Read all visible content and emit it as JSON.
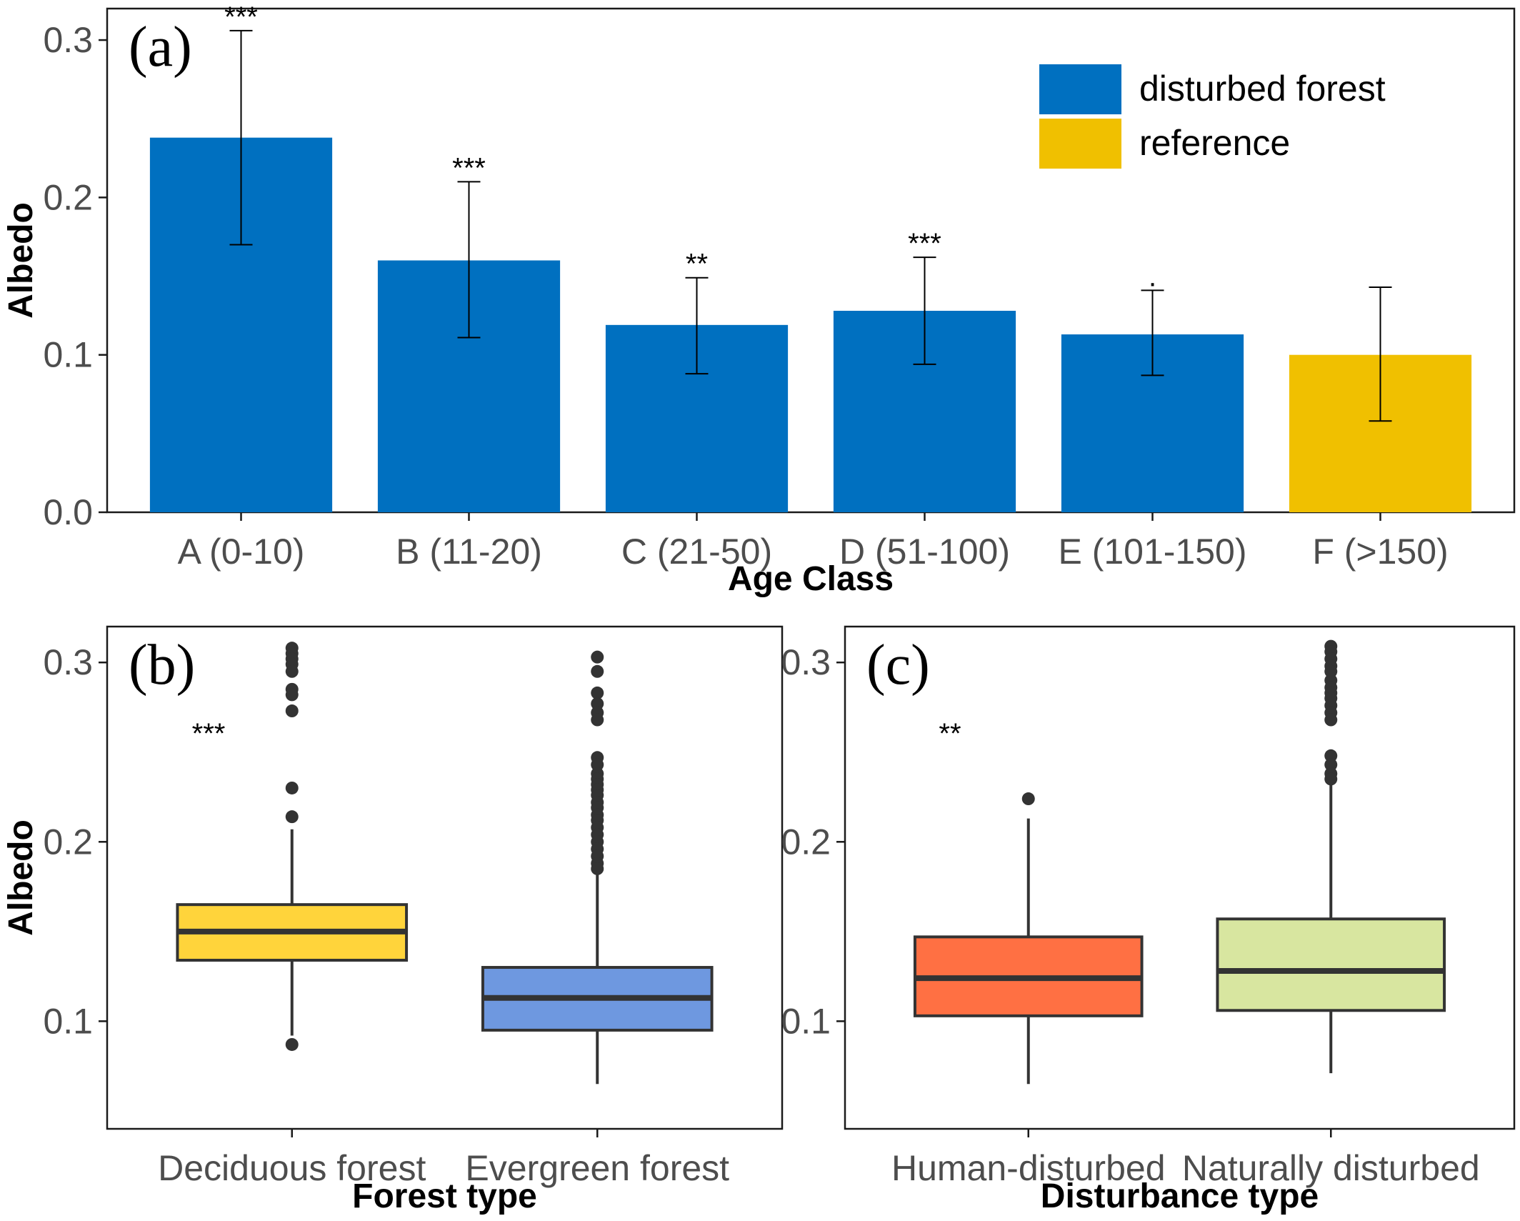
{
  "chart_data": [
    {
      "panel_label": "(a)",
      "type": "bar",
      "xlabel": "Age Class",
      "ylabel": "Albedo",
      "ylim": [
        0,
        0.32
      ],
      "yticks": [
        "0.0",
        "0.1",
        "0.2",
        "0.3"
      ],
      "grid": false,
      "legend_position": "top-right",
      "categories": [
        "A (0-10)",
        "B (11-20)",
        "C (21-50)",
        "D (51-100)",
        "E (101-150)",
        "F (>150)"
      ],
      "values": [
        0.238,
        0.16,
        0.119,
        0.128,
        0.113,
        0.1
      ],
      "error_low": [
        0.17,
        0.111,
        0.088,
        0.094,
        0.087,
        0.058
      ],
      "error_high": [
        0.306,
        0.21,
        0.149,
        0.162,
        0.141,
        0.143
      ],
      "groups": [
        "disturbed forest",
        "disturbed forest",
        "disturbed forest",
        "disturbed forest",
        "disturbed forest",
        "reference"
      ],
      "significance": [
        "***",
        "***",
        "**",
        "***",
        ".",
        ""
      ],
      "legend": [
        {
          "name": "disturbed forest",
          "color": "#0070C0"
        },
        {
          "name": "reference",
          "color": "#F0C000"
        }
      ]
    },
    {
      "panel_label": "(b)",
      "type": "box",
      "xlabel": "Forest type",
      "ylabel": "Albedo",
      "ylim": [
        0.04,
        0.32
      ],
      "yticks": [
        "0.1",
        "0.2",
        "0.3"
      ],
      "grid": false,
      "significance": "***",
      "boxes": [
        {
          "category": "Deciduous forest",
          "color": "#FFD43B",
          "q1": 0.134,
          "median": 0.15,
          "q3": 0.165,
          "whisker_low": 0.092,
          "whisker_high": 0.207,
          "outliers": [
            0.308,
            0.305,
            0.302,
            0.299,
            0.295,
            0.285,
            0.282,
            0.273,
            0.23,
            0.214,
            0.087
          ]
        },
        {
          "category": "Evergreen forest",
          "color": "#6E98E0",
          "q1": 0.095,
          "median": 0.113,
          "q3": 0.13,
          "whisker_low": 0.065,
          "whisker_high": 0.183,
          "outliers": [
            0.303,
            0.295,
            0.283,
            0.277,
            0.272,
            0.268,
            0.247,
            0.243,
            0.238,
            0.235,
            0.232,
            0.229,
            0.226,
            0.222,
            0.219,
            0.215,
            0.212,
            0.208,
            0.204,
            0.2,
            0.196,
            0.192,
            0.188,
            0.185
          ]
        }
      ]
    },
    {
      "panel_label": "(c)",
      "type": "box",
      "xlabel": "Disturbance type",
      "ylabel": "",
      "ylim": [
        0.04,
        0.32
      ],
      "yticks": [
        "0.1",
        "0.2",
        "0.3"
      ],
      "grid": false,
      "significance": "**",
      "boxes": [
        {
          "category": "Human-disturbed",
          "color": "#FF7043",
          "q1": 0.103,
          "median": 0.124,
          "q3": 0.147,
          "whisker_low": 0.065,
          "whisker_high": 0.213,
          "outliers": [
            0.224
          ]
        },
        {
          "category": "Naturally disturbed",
          "color": "#D8E6A0",
          "q1": 0.106,
          "median": 0.128,
          "q3": 0.157,
          "whisker_low": 0.071,
          "whisker_high": 0.233,
          "outliers": [
            0.309,
            0.306,
            0.302,
            0.298,
            0.295,
            0.29,
            0.286,
            0.283,
            0.28,
            0.276,
            0.272,
            0.268,
            0.248,
            0.243,
            0.238,
            0.235
          ]
        }
      ]
    }
  ]
}
